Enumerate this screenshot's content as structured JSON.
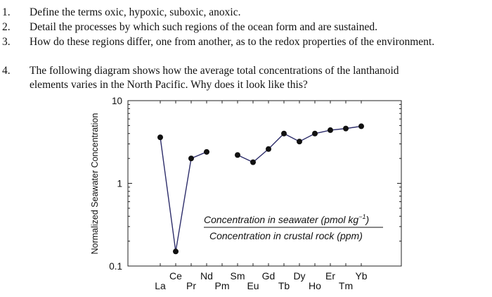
{
  "questions": [
    {
      "num": "1.",
      "text": "Define the terms oxic, hypoxic, suboxic, anoxic."
    },
    {
      "num": "2.",
      "text": "Detail the processes by which such regions of the ocean form and are sustained."
    },
    {
      "num": "3.",
      "text": "How do these regions differ, one from another, as to the redox properties of the environment."
    },
    {
      "num": "4.",
      "text": "The following diagram shows how the average total concentrations of the lanthanoid",
      "text2": "elements varies in the North Pacific. Why does it look like this?"
    }
  ],
  "chart_data": {
    "type": "line",
    "ylabel": "Normalized Seawater Concentration",
    "yscale": "log",
    "ylim": [
      0.1,
      10
    ],
    "yticks": [
      "10",
      "1",
      "0.1"
    ],
    "categories": [
      "La",
      "Ce",
      "Pr",
      "Nd",
      "Pm",
      "Sm",
      "Eu",
      "Gd",
      "Tb",
      "Dy",
      "Ho",
      "Er",
      "Tm",
      "Yb"
    ],
    "segments": [
      {
        "x": [
          "La",
          "Ce",
          "Pr",
          "Nd"
        ],
        "y": [
          3.6,
          0.15,
          2.0,
          2.4
        ]
      },
      {
        "x": [
          "Sm",
          "Eu",
          "Gd",
          "Tb",
          "Dy",
          "Ho",
          "Er",
          "Tm",
          "Yb"
        ],
        "y": [
          2.2,
          1.8,
          2.6,
          4.0,
          3.2,
          4.0,
          4.4,
          4.6,
          4.9
        ]
      }
    ],
    "annotation": {
      "numerator": "Concentration in seawater (pmol kg",
      "numerator_sup": "−1",
      "numerator_close": ")",
      "denominator": "Concentration in crustal rock (ppm)"
    },
    "grid": false
  }
}
